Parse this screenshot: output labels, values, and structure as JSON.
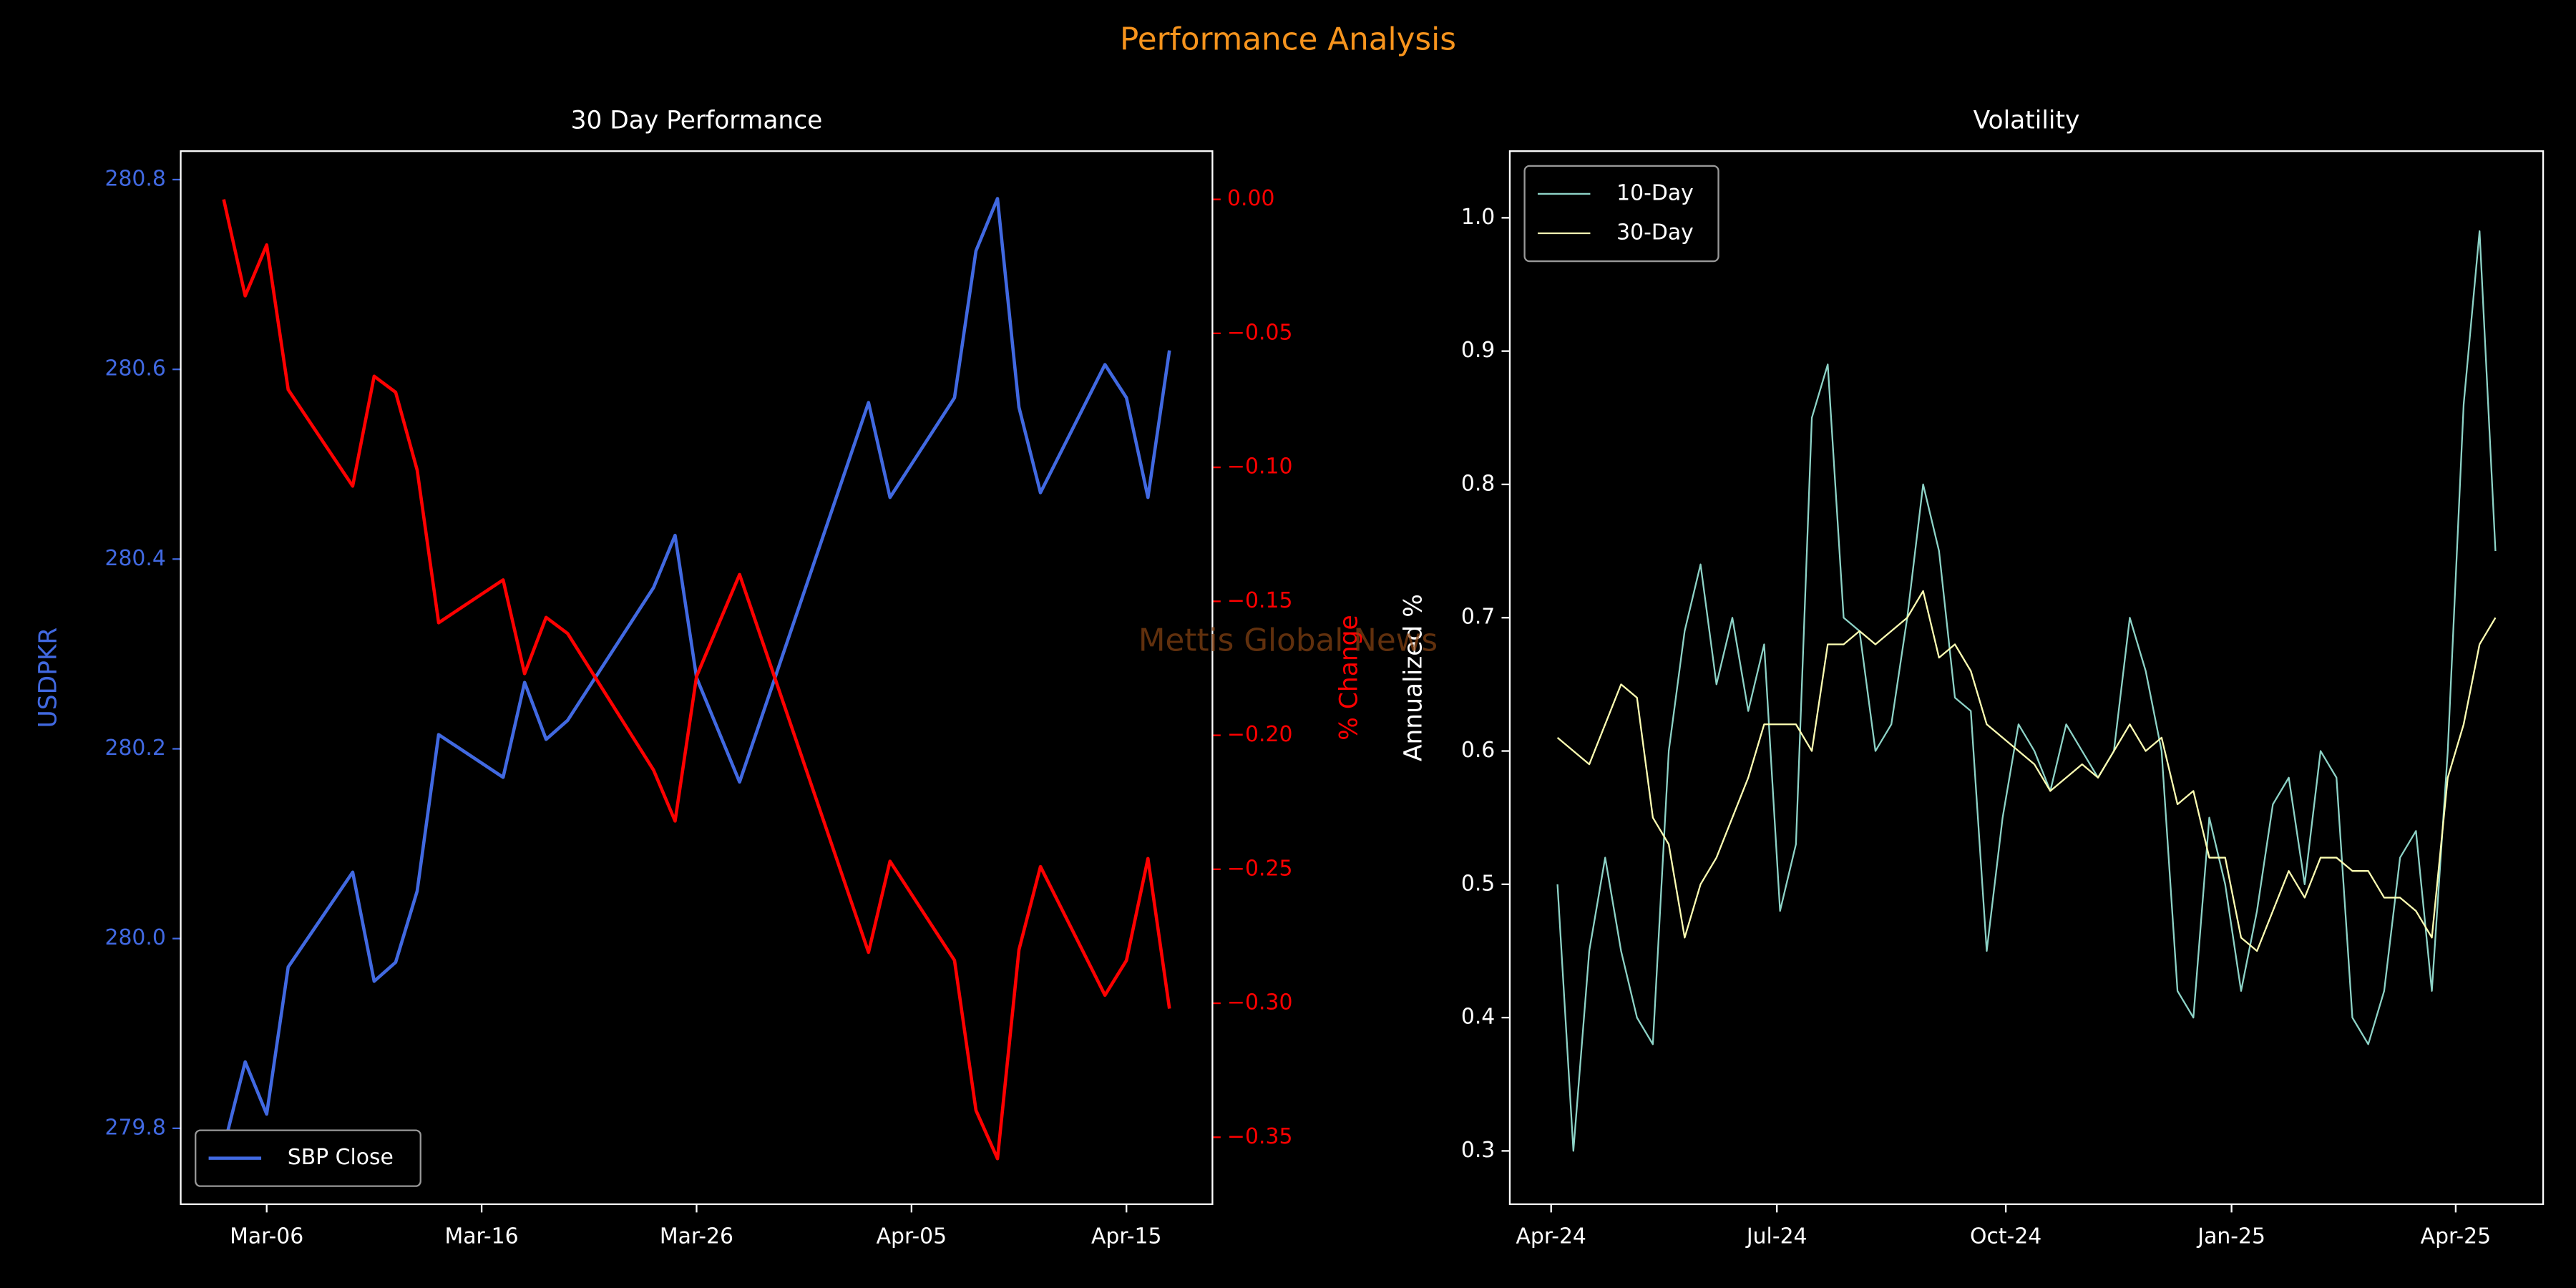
{
  "title": "Performance Analysis",
  "title_color": "#f7941d",
  "watermark": "Mettis Global News",
  "chart_data": [
    {
      "type": "line",
      "title": "30 Day Performance",
      "ylabel": "USDPKR",
      "y2label": "% Change",
      "legend": "lower left",
      "x": [
        "Mar-04",
        "Mar-05",
        "Mar-06",
        "Mar-07",
        "Mar-10",
        "Mar-11",
        "Mar-12",
        "Mar-13",
        "Mar-14",
        "Mar-17",
        "Mar-18",
        "Mar-19",
        "Mar-20",
        "Mar-24",
        "Mar-25",
        "Mar-26",
        "Mar-27",
        "Mar-28",
        "Apr-03",
        "Apr-04",
        "Apr-07",
        "Apr-08",
        "Apr-09",
        "Apr-10",
        "Apr-11",
        "Apr-14",
        "Apr-15",
        "Apr-16",
        "Apr-17"
      ],
      "series": [
        {
          "name": "SBP Close",
          "color": "#4169e1",
          "values": [
            279.78,
            279.87,
            279.815,
            279.97,
            280.07,
            279.955,
            279.975,
            280.05,
            280.215,
            280.17,
            280.27,
            280.21,
            280.23,
            280.37,
            280.425,
            280.275,
            280.22,
            280.165,
            280.565,
            280.465,
            280.57,
            280.725,
            280.78,
            280.56,
            280.47,
            280.605,
            280.57,
            280.465,
            280.62
          ]
        },
        {
          "color": "#ff0000",
          "axis": "y2",
          "values": [
            0,
            -0.036,
            -0.017,
            -0.071,
            -0.107,
            -0.066,
            -0.072,
            -0.101,
            -0.158,
            -0.142,
            -0.177,
            -0.156,
            -0.162,
            -0.213,
            -0.232,
            -0.178,
            -0.159,
            -0.14,
            -0.281,
            -0.247,
            -0.284,
            -0.34,
            -0.358,
            -0.28,
            -0.249,
            -0.297,
            -0.284,
            -0.246,
            -0.302
          ]
        }
      ],
      "xlim": [
        "Mar-02",
        "Apr-19"
      ],
      "xticks": [
        "Mar-06",
        "Mar-16",
        "Mar-26",
        "Apr-05",
        "Apr-15"
      ],
      "ylim": [
        279.72,
        280.83
      ],
      "yticks": [
        279.8,
        {
          "value": 280,
          "label": "280.0"
        },
        280.2,
        280.4,
        280.6,
        280.8
      ],
      "y2lim": [
        -0.375,
        0.018
      ],
      "y2ticks": [
        {
          "value": 0,
          "label": "0.00"
        },
        {
          "value": -0.05,
          "label": "−0.05"
        },
        {
          "value": -0.1,
          "label": "−0.10"
        },
        {
          "value": -0.15,
          "label": "−0.15"
        },
        {
          "value": -0.2,
          "label": "−0.20"
        },
        {
          "value": -0.25,
          "label": "−0.25"
        },
        {
          "value": -0.3,
          "label": "−0.30"
        },
        {
          "value": -0.35,
          "label": "−0.35"
        }
      ]
    },
    {
      "type": "line",
      "title": "Volatility",
      "ylabel": "Annualized %",
      "legend": "upper left",
      "series": [
        {
          "name": "10-Day",
          "color": "#8dd3c7",
          "values": [
            0.5,
            0.3,
            0.45,
            0.52,
            0.45,
            0.4,
            0.38,
            0.6,
            0.69,
            0.74,
            0.65,
            0.7,
            0.63,
            0.68,
            0.48,
            0.53,
            0.85,
            0.89,
            0.7,
            0.69,
            0.6,
            0.62,
            0.7,
            0.8,
            0.75,
            0.64,
            0.63,
            0.45,
            0.55,
            0.62,
            0.6,
            0.57,
            0.62,
            0.6,
            0.58,
            0.6,
            0.7,
            0.66,
            0.6,
            0.42,
            0.4,
            0.55,
            0.5,
            0.42,
            0.48,
            0.56,
            0.58,
            0.5,
            0.6,
            0.58,
            0.4,
            0.38,
            0.42,
            0.52,
            0.54,
            0.42,
            0.6,
            0.86,
            0.99,
            0.75
          ]
        },
        {
          "name": "30-Day",
          "color": "#feffb3",
          "values": [
            0.61,
            0.6,
            0.59,
            0.62,
            0.65,
            0.64,
            0.55,
            0.53,
            0.46,
            0.5,
            0.52,
            0.55,
            0.58,
            0.62,
            0.62,
            0.62,
            0.6,
            0.68,
            0.68,
            0.69,
            0.68,
            0.69,
            0.7,
            0.72,
            0.67,
            0.68,
            0.66,
            0.62,
            0.61,
            0.6,
            0.59,
            0.57,
            0.58,
            0.59,
            0.58,
            0.6,
            0.62,
            0.6,
            0.61,
            0.56,
            0.57,
            0.52,
            0.52,
            0.46,
            0.45,
            0.48,
            0.51,
            0.49,
            0.52,
            0.52,
            0.51,
            0.51,
            0.49,
            0.49,
            0.48,
            0.46,
            0.58,
            0.62,
            0.68,
            0.7
          ]
        }
      ],
      "xlim": [
        -3,
        62
      ],
      "xticks": [
        {
          "value": -0.4,
          "label": "Apr-24"
        },
        {
          "value": 13.8,
          "label": "Jul-24"
        },
        {
          "value": 28.2,
          "label": "Oct-24"
        },
        {
          "value": 42.4,
          "label": "Jan-25"
        },
        {
          "value": 56.5,
          "label": "Apr-25"
        }
      ],
      "ylim": [
        0.26,
        1.05
      ],
      "yticks": [
        0.3,
        0.4,
        0.5,
        0.6,
        0.7,
        0.8,
        0.9,
        {
          "value": 1,
          "label": "1.0"
        }
      ]
    }
  ]
}
